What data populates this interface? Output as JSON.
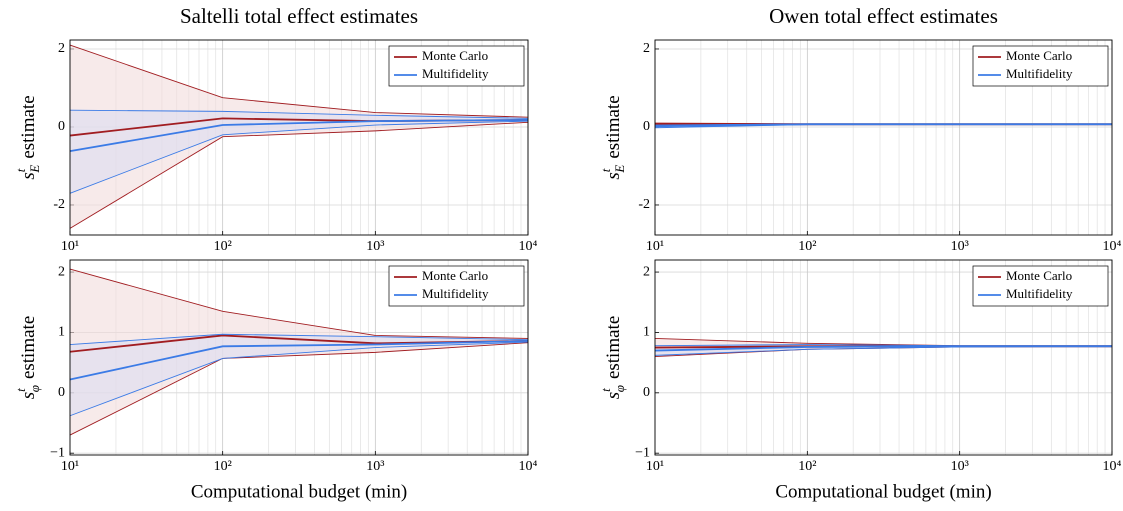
{
  "chart_data": [
    {
      "type": "line",
      "title": "Saltelli total effect estimates",
      "ylabel": {
        "symbol": "s",
        "sup": "t",
        "sub": "E",
        "text": "estimate"
      },
      "x": [
        10,
        100,
        1000,
        10000
      ],
      "xscale": "log",
      "xlim": [
        10,
        10000
      ],
      "xticks": [
        {
          "value": 10,
          "label": "10¹"
        },
        {
          "value": 100,
          "label": "10²"
        },
        {
          "value": 1000,
          "label": "10³"
        },
        {
          "value": 10000,
          "label": "10⁴"
        }
      ],
      "ylim": [
        -2.77,
        2.23
      ],
      "yticks": [
        -2,
        0,
        2
      ],
      "grid": true,
      "legend": "upper right",
      "series": [
        {
          "name": "Monte Carlo",
          "color": "#a11d21",
          "fill": "#f2dcdc",
          "values": [
            -0.22,
            0.22,
            0.15,
            0.18
          ],
          "upper": [
            2.1,
            0.75,
            0.37,
            0.25
          ],
          "lower": [
            -2.6,
            -0.25,
            -0.1,
            0.12
          ]
        },
        {
          "name": "Multifidelity",
          "color": "#3b7be6",
          "fill": "#dcdcf0",
          "values": [
            -0.62,
            0.05,
            0.15,
            0.18
          ],
          "upper": [
            0.43,
            0.4,
            0.3,
            0.22
          ],
          "lower": [
            -1.7,
            -0.2,
            0.05,
            0.15
          ]
        }
      ]
    },
    {
      "type": "line",
      "title": "Owen total effect estimates",
      "ylabel": {
        "symbol": "s",
        "sup": "t",
        "sub": "E",
        "text": "estimate"
      },
      "x": [
        10,
        100,
        1000,
        10000
      ],
      "xscale": "log",
      "xlim": [
        10,
        10000
      ],
      "xticks": [
        {
          "value": 10,
          "label": "10¹"
        },
        {
          "value": 100,
          "label": "10²"
        },
        {
          "value": 1000,
          "label": "10³"
        },
        {
          "value": 10000,
          "label": "10⁴"
        }
      ],
      "ylim": [
        -2.77,
        2.23
      ],
      "yticks": [
        -2,
        0,
        2
      ],
      "grid": true,
      "legend": "upper right",
      "series": [
        {
          "name": "Monte Carlo",
          "color": "#a11d21",
          "fill": "#f2dcdc",
          "values": [
            0.08,
            0.07,
            0.07,
            0.07
          ],
          "upper": [
            0.1,
            0.08,
            0.08,
            0.08
          ],
          "lower": [
            0.05,
            0.06,
            0.06,
            0.06
          ]
        },
        {
          "name": "Multifidelity",
          "color": "#3b7be6",
          "fill": "#dcdcf0",
          "values": [
            0.02,
            0.07,
            0.07,
            0.07
          ],
          "upper": [
            0.05,
            0.08,
            0.08,
            0.08
          ],
          "lower": [
            -0.02,
            0.06,
            0.06,
            0.06
          ]
        }
      ]
    },
    {
      "type": "line",
      "xlabel": "Computational budget (min)",
      "ylabel": {
        "symbol": "s",
        "sup": "t",
        "sub": "φ",
        "text": "estimate"
      },
      "x": [
        10,
        100,
        1000,
        10000
      ],
      "xscale": "log",
      "xlim": [
        10,
        10000
      ],
      "xticks": [
        {
          "value": 10,
          "label": "10¹"
        },
        {
          "value": 100,
          "label": "10²"
        },
        {
          "value": 1000,
          "label": "10³"
        },
        {
          "value": 10000,
          "label": "10⁴"
        }
      ],
      "ylim": [
        -1.03,
        2.2
      ],
      "yticks": [
        {
          "value": -1,
          "label": "−1"
        },
        0,
        1,
        2
      ],
      "grid": true,
      "legend": "upper right",
      "series": [
        {
          "name": "Monte Carlo",
          "color": "#a11d21",
          "fill": "#f2dcdc",
          "values": [
            0.68,
            0.95,
            0.82,
            0.86
          ],
          "upper": [
            2.05,
            1.35,
            0.95,
            0.9
          ],
          "lower": [
            -0.7,
            0.57,
            0.67,
            0.83
          ]
        },
        {
          "name": "Multifidelity",
          "color": "#3b7be6",
          "fill": "#dcdcf0",
          "values": [
            0.22,
            0.77,
            0.8,
            0.86
          ],
          "upper": [
            0.8,
            0.97,
            0.93,
            0.88
          ],
          "lower": [
            -0.38,
            0.57,
            0.75,
            0.84
          ]
        }
      ]
    },
    {
      "type": "line",
      "xlabel": "Computational budget (min)",
      "ylabel": {
        "symbol": "s",
        "sup": "t",
        "sub": "φ",
        "text": "estimate"
      },
      "x": [
        10,
        100,
        1000,
        10000
      ],
      "xscale": "log",
      "xlim": [
        10,
        10000
      ],
      "xticks": [
        {
          "value": 10,
          "label": "10¹"
        },
        {
          "value": 100,
          "label": "10²"
        },
        {
          "value": 1000,
          "label": "10³"
        },
        {
          "value": 10000,
          "label": "10⁴"
        }
      ],
      "ylim": [
        -1.03,
        2.2
      ],
      "yticks": [
        {
          "value": -1,
          "label": "−1"
        },
        0,
        1,
        2
      ],
      "grid": true,
      "legend": "upper right",
      "series": [
        {
          "name": "Monte Carlo",
          "color": "#a11d21",
          "fill": "#f2dcdc",
          "values": [
            0.75,
            0.77,
            0.77,
            0.77
          ],
          "upper": [
            0.9,
            0.82,
            0.78,
            0.78
          ],
          "lower": [
            0.6,
            0.72,
            0.76,
            0.77
          ]
        },
        {
          "name": "Multifidelity",
          "color": "#3b7be6",
          "fill": "#dcdcf0",
          "values": [
            0.7,
            0.76,
            0.77,
            0.77
          ],
          "upper": [
            0.78,
            0.8,
            0.78,
            0.78
          ],
          "lower": [
            0.62,
            0.72,
            0.76,
            0.77
          ]
        }
      ]
    }
  ]
}
